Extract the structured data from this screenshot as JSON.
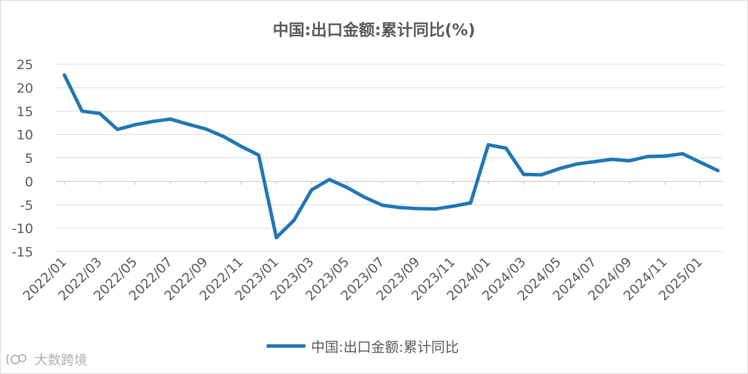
{
  "chart_data": {
    "type": "line",
    "title": "中国:出口金额:累计同比(%)",
    "xlabel": "",
    "ylabel": "",
    "ylim": [
      -15,
      25
    ],
    "yticks": [
      25,
      20,
      15,
      10,
      5,
      0,
      -5,
      -10,
      -15
    ],
    "xtick_labels": [
      "2022/01",
      "2022/03",
      "2022/05",
      "2022/07",
      "2022/09",
      "2022/11",
      "2023/01",
      "2023/03",
      "2023/05",
      "2023/07",
      "2023/09",
      "2023/11",
      "2024/01",
      "2024/03",
      "2024/05",
      "2024/07",
      "2024/09",
      "2024/11",
      "2025/01"
    ],
    "grid": true,
    "legend_position": "bottom",
    "color": "#1f77b4",
    "series": [
      {
        "name": "中国:出口金额:累计同比",
        "x": [
          "2022/01",
          "2022/02",
          "2022/03",
          "2022/04",
          "2022/05",
          "2022/06",
          "2022/07",
          "2022/08",
          "2022/09",
          "2022/10",
          "2022/11",
          "2022/12",
          "2023/01",
          "2023/02",
          "2023/03",
          "2023/04",
          "2023/05",
          "2023/06",
          "2023/07",
          "2023/08",
          "2023/09",
          "2023/10",
          "2023/11",
          "2023/12",
          "2024/01",
          "2024/02",
          "2024/03",
          "2024/04",
          "2024/05",
          "2024/06",
          "2024/07",
          "2024/08",
          "2024/09",
          "2024/10",
          "2024/11",
          "2024/12",
          "2025/01",
          "2025/02"
        ],
        "values": [
          22.7,
          15.0,
          14.5,
          11.1,
          12.1,
          12.8,
          13.3,
          12.2,
          11.2,
          9.6,
          7.5,
          5.6,
          -12.0,
          -8.3,
          -1.8,
          0.4,
          -1.3,
          -3.4,
          -5.1,
          -5.6,
          -5.8,
          -5.9,
          -5.3,
          -4.6,
          7.8,
          7.1,
          1.5,
          1.4,
          2.7,
          3.7,
          4.2,
          4.7,
          4.4,
          5.3,
          5.4,
          5.9,
          4.1,
          2.3
        ]
      }
    ]
  },
  "watermark": {
    "text": "大数跨境"
  }
}
